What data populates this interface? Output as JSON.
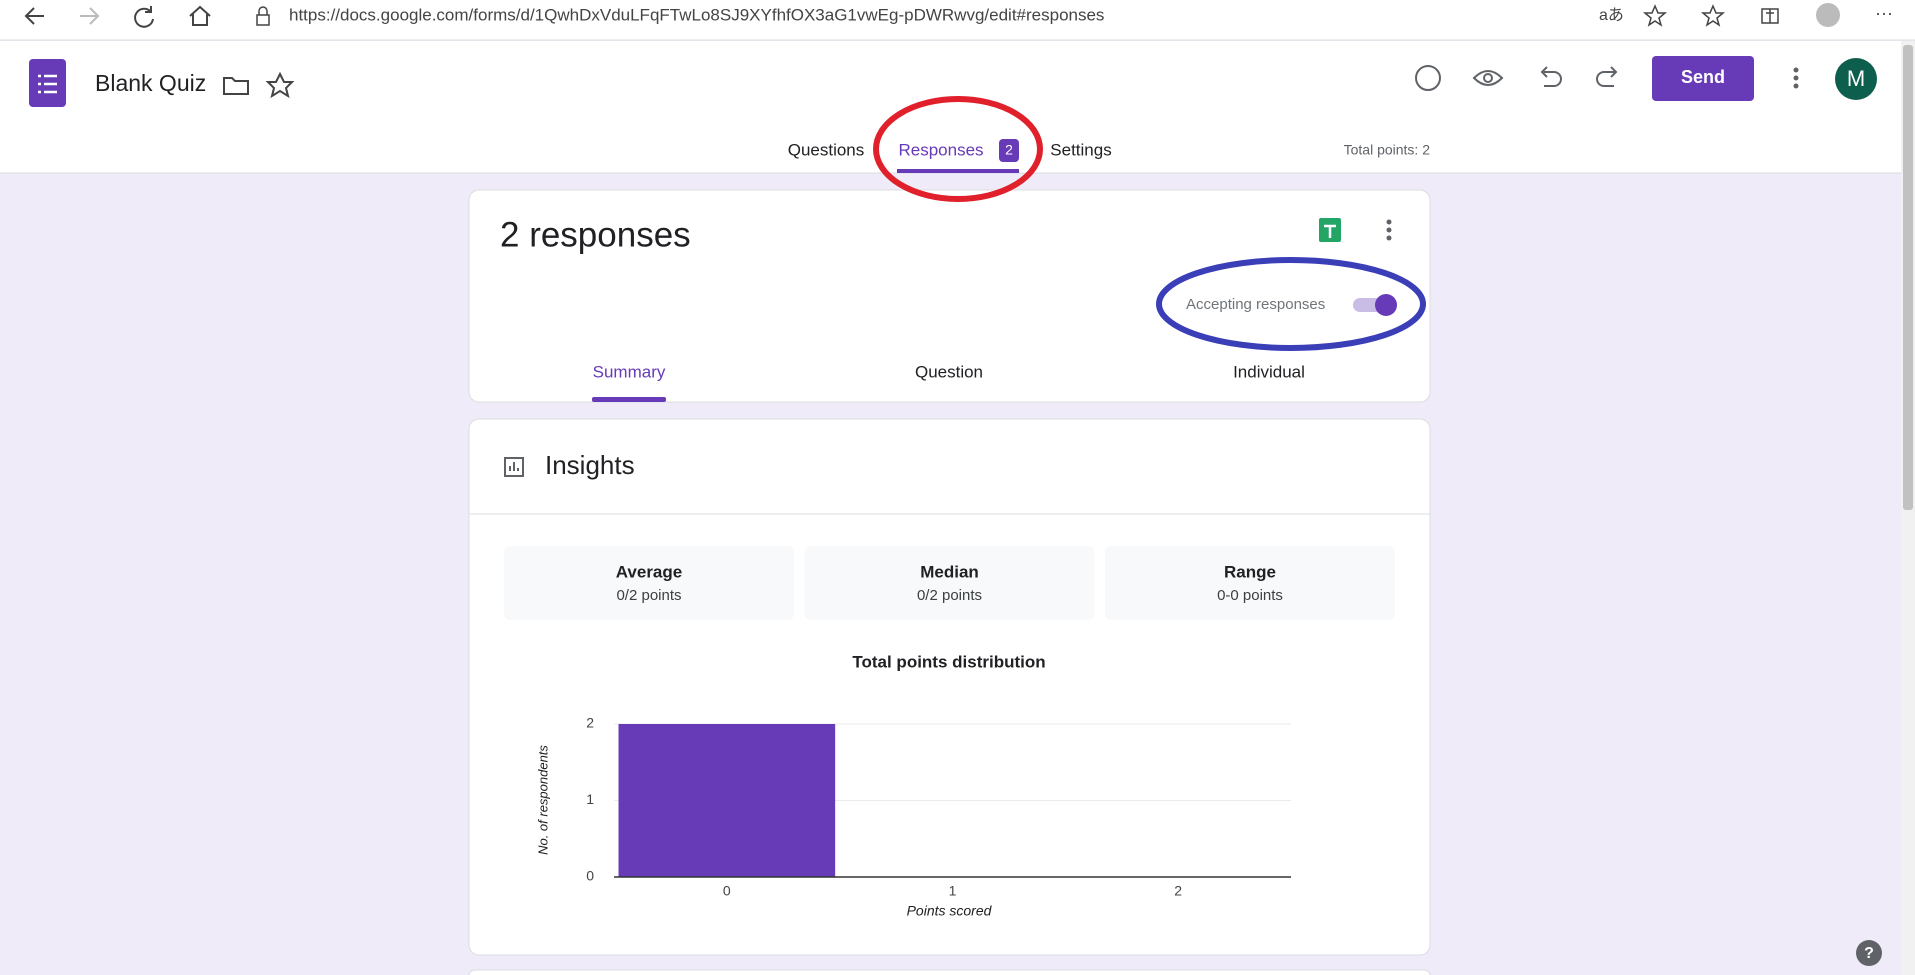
{
  "browser": {
    "url": "https://docs.google.com/forms/d/1QwhDxVduLFqFTwLo8SJ9XYfhfOX3aG1vwEg-pDWRwvg/edit#responses"
  },
  "header": {
    "title": "Blank Quiz",
    "send": "Send",
    "avatar": "M",
    "tabs": [
      "Questions",
      "Responses",
      "Settings"
    ],
    "responses_badge": "2",
    "total_points": "Total points: 2"
  },
  "responses_card": {
    "count": "2 responses",
    "accepting": "Accepting responses",
    "subtabs": [
      "Summary",
      "Question",
      "Individual"
    ]
  },
  "insights": {
    "title": "Insights",
    "stats": [
      {
        "label": "Average",
        "value": "0/2 points"
      },
      {
        "label": "Median",
        "value": "0/2 points"
      },
      {
        "label": "Range",
        "value": "0-0 points"
      }
    ]
  },
  "chart_data": {
    "type": "bar",
    "title": "Total points distribution",
    "x_label": "Points scored",
    "y_label": "No. of respondents",
    "categories": [
      "0",
      "1",
      "2"
    ],
    "values": [
      2,
      0,
      0
    ],
    "color": "#673ab7",
    "ylim": [
      0,
      2
    ],
    "yticks": [
      0,
      1,
      2
    ],
    "grid": true
  }
}
